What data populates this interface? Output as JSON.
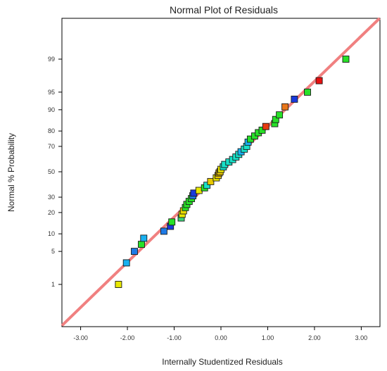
{
  "chart_data": {
    "type": "scatter",
    "title": "Normal Plot of Residuals",
    "xlabel": "Internally Studentized Residuals",
    "ylabel": "Normal % Probability",
    "x_ticks": [
      "-3.00",
      "-2.00",
      "-1.00",
      "0.00",
      "1.00",
      "2.00",
      "3.00"
    ],
    "x_tick_values": [
      -3,
      -2,
      -1,
      0,
      1,
      2,
      3
    ],
    "y_ticks": [
      "1",
      "5",
      "10",
      "20",
      "30",
      "50",
      "70",
      "80",
      "90",
      "95",
      "99"
    ],
    "y_tick_values": [
      1,
      5,
      10,
      20,
      30,
      50,
      70,
      80,
      90,
      95,
      99
    ],
    "xlim": [
      -3.4,
      3.4
    ],
    "y_scale": "normal-probability",
    "grid": false,
    "reference_line": {
      "color": "#f08080",
      "description": "normal reference line"
    },
    "points": [
      {
        "x": -2.19,
        "y": 1.0,
        "color": "#e8e800"
      },
      {
        "x": -2.02,
        "y": 3.0,
        "color": "#18b0f0"
      },
      {
        "x": -1.85,
        "y": 5.0,
        "color": "#1e7ae6"
      },
      {
        "x": -1.7,
        "y": 6.7,
        "color": "#28e028"
      },
      {
        "x": -1.65,
        "y": 8.5,
        "color": "#18b0f0"
      },
      {
        "x": -1.22,
        "y": 11.0,
        "color": "#1e7ae6"
      },
      {
        "x": -1.08,
        "y": 13.0,
        "color": "#1a3adc"
      },
      {
        "x": -1.05,
        "y": 15.0,
        "color": "#28e028"
      },
      {
        "x": -0.85,
        "y": 17.0,
        "color": "#3cd278"
      },
      {
        "x": -0.83,
        "y": 19.0,
        "color": "#e8e800"
      },
      {
        "x": -0.8,
        "y": 21.0,
        "color": "#e8d800"
      },
      {
        "x": -0.76,
        "y": 23.0,
        "color": "#28e028"
      },
      {
        "x": -0.73,
        "y": 25.0,
        "color": "#28e028"
      },
      {
        "x": -0.68,
        "y": 27.0,
        "color": "#28e028"
      },
      {
        "x": -0.63,
        "y": 29.0,
        "color": "#28e028"
      },
      {
        "x": -0.6,
        "y": 31.0,
        "color": "#1e7ae6"
      },
      {
        "x": -0.58,
        "y": 33.0,
        "color": "#1a3adc"
      },
      {
        "x": -0.47,
        "y": 35.0,
        "color": "#e8e800"
      },
      {
        "x": -0.35,
        "y": 37.0,
        "color": "#28e028"
      },
      {
        "x": -0.3,
        "y": 39.0,
        "color": "#18e0c8"
      },
      {
        "x": -0.22,
        "y": 42.0,
        "color": "#e8c800"
      },
      {
        "x": -0.1,
        "y": 45.0,
        "color": "#e8e800"
      },
      {
        "x": -0.06,
        "y": 47.0,
        "color": "#e8c800"
      },
      {
        "x": -0.04,
        "y": 49.0,
        "color": "#e8b400"
      },
      {
        "x": -0.02,
        "y": 50.0,
        "color": "#e8c800"
      },
      {
        "x": 0.0,
        "y": 52.0,
        "color": "#e8e800"
      },
      {
        "x": 0.05,
        "y": 54.0,
        "color": "#18e0c8"
      },
      {
        "x": 0.08,
        "y": 56.0,
        "color": "#18e0c8"
      },
      {
        "x": 0.17,
        "y": 58.0,
        "color": "#18e0c8"
      },
      {
        "x": 0.25,
        "y": 60.0,
        "color": "#18e0c8"
      },
      {
        "x": 0.32,
        "y": 62.0,
        "color": "#18e0c8"
      },
      {
        "x": 0.38,
        "y": 64.0,
        "color": "#18e0c8"
      },
      {
        "x": 0.43,
        "y": 66.0,
        "color": "#18b0f0"
      },
      {
        "x": 0.5,
        "y": 68.0,
        "color": "#18e0c8"
      },
      {
        "x": 0.55,
        "y": 70.0,
        "color": "#18e0c8"
      },
      {
        "x": 0.58,
        "y": 73.0,
        "color": "#18b0f0"
      },
      {
        "x": 0.63,
        "y": 75.0,
        "color": "#28e028"
      },
      {
        "x": 0.72,
        "y": 77.0,
        "color": "#28e028"
      },
      {
        "x": 0.8,
        "y": 79.0,
        "color": "#28e028"
      },
      {
        "x": 0.88,
        "y": 80.5,
        "color": "#28e028"
      },
      {
        "x": 0.96,
        "y": 82.5,
        "color": "#e83a10"
      },
      {
        "x": 1.15,
        "y": 84.0,
        "color": "#28e028"
      },
      {
        "x": 1.17,
        "y": 86.0,
        "color": "#28e028"
      },
      {
        "x": 1.25,
        "y": 88.0,
        "color": "#28e028"
      },
      {
        "x": 1.37,
        "y": 91.0,
        "color": "#e8761a"
      },
      {
        "x": 1.57,
        "y": 93.3,
        "color": "#1a3adc"
      },
      {
        "x": 1.85,
        "y": 95.0,
        "color": "#28e028"
      },
      {
        "x": 2.1,
        "y": 97.0,
        "color": "#e81010"
      },
      {
        "x": 2.67,
        "y": 99.0,
        "color": "#28e028"
      }
    ]
  }
}
